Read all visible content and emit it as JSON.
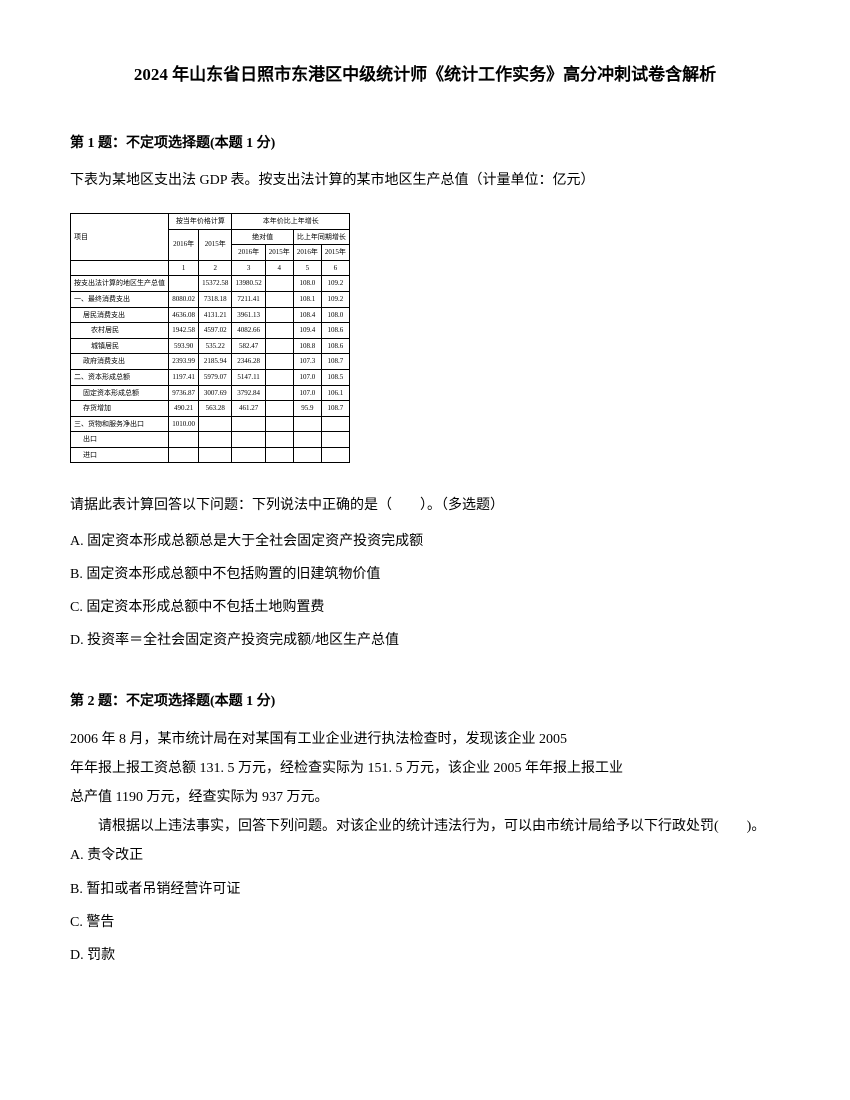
{
  "title": "2024 年山东省日照市东港区中级统计师《统计工作实务》高分冲刺试卷含解析",
  "q1": {
    "header": "第 1 题：不定项选择题(本题 1 分)",
    "intro": "下表为某地区支出法 GDP 表。按支出法计算的某市地区生产总值（计量单位：亿元）",
    "prompt": "请据此表计算回答以下问题：下列说法中正确的是（　　）。（多选题）",
    "options": {
      "A": "A. 固定资本形成总额总是大于全社会固定资产投资完成额",
      "B": "B. 固定资本形成总额中不包括购置的旧建筑物价值",
      "C": "C. 固定资本形成总额中不包括土地购置费",
      "D": "D. 投资率＝全社会固定资产投资完成额/地区生产总值"
    }
  },
  "table": {
    "header_top": {
      "col_group1": "按当年价格计算",
      "col_group2": "本年价比上年增长"
    },
    "header_years": {
      "y2016": "2016年",
      "y2015": "2015年",
      "sub1_label": "绝对值",
      "sub2_label": "比上年同期增长",
      "y2016_2": "2016年",
      "y2015_2": "2015年",
      "y2016_3": "2016年",
      "y2015_3": "2015年"
    },
    "header_nums": {
      "c1": "1",
      "c2": "2",
      "c3": "3",
      "c4": "4",
      "c5": "5",
      "c6": "6"
    },
    "row_label_item": "项目",
    "rows": [
      {
        "label": "按支出法计算的地区生产总值",
        "v1": "",
        "v2": "15372.58",
        "v3": "13980.52",
        "v4": "",
        "v5": "108.0",
        "v6": "109.2"
      },
      {
        "label": "一、最终消费支出",
        "v1": "8080.02",
        "v2": "7318.18",
        "v3": "7211.41",
        "v4": "",
        "v5": "108.1",
        "v6": "109.2"
      },
      {
        "label": "居民消费支出",
        "indent": 1,
        "v1": "4636.08",
        "v2": "4131.21",
        "v3": "3961.13",
        "v4": "",
        "v5": "108.4",
        "v6": "108.0"
      },
      {
        "label": "农村居民",
        "indent": 2,
        "v1": "1942.58",
        "v2": "4597.02",
        "v3": "4082.66",
        "v4": "",
        "v5": "109.4",
        "v6": "108.6"
      },
      {
        "label": "城镇居民",
        "indent": 2,
        "v1": "593.90",
        "v2": "535.22",
        "v3": "582.47",
        "v4": "",
        "v5": "108.8",
        "v6": "108.6"
      },
      {
        "label": "政府消费支出",
        "indent": 1,
        "v1": "2393.99",
        "v2": "2185.94",
        "v3": "2346.28",
        "v4": "",
        "v5": "107.3",
        "v6": "108.7"
      },
      {
        "label": "二、资本形成总额",
        "v1": "1197.41",
        "v2": "5979.07",
        "v3": "5147.11",
        "v4": "",
        "v5": "107.0",
        "v6": "108.5"
      },
      {
        "label": "固定资本形成总额",
        "indent": 1,
        "v1": "9736.87",
        "v2": "3007.69",
        "v3": "3792.84",
        "v4": "",
        "v5": "107.0",
        "v6": "106.1"
      },
      {
        "label": "存货增加",
        "indent": 1,
        "v1": "490.21",
        "v2": "563.28",
        "v3": "461.27",
        "v4": "",
        "v5": "95.9",
        "v6": "108.7"
      },
      {
        "label": "三、货物和服务净出口",
        "v1": "1010.00",
        "v2": "",
        "v3": "",
        "v4": "",
        "v5": "",
        "v6": ""
      },
      {
        "label": "出口",
        "indent": 1,
        "v1": "",
        "v2": "",
        "v3": "",
        "v4": "",
        "v5": "",
        "v6": ""
      },
      {
        "label": "进口",
        "indent": 1,
        "v1": "",
        "v2": "",
        "v3": "",
        "v4": "",
        "v5": "",
        "v6": ""
      }
    ]
  },
  "q2": {
    "header": "第 2 题：不定项选择题(本题 1 分)",
    "p1": "2006 年 8 月，某市统计局在对某国有工业企业进行执法检查时，发现该企业 2005",
    "p2": "年年报上报工资总额 131. 5 万元，经检查实际为 151. 5 万元，该企业 2005 年年报上报工业",
    "p3": "总产值 1190 万元，经查实际为 937 万元。",
    "p4": "请根据以上违法事实，回答下列问题。对该企业的统计违法行为，可以由市统计局给予以下行政处罚(　　)。",
    "options": {
      "A": "A. 责令改正",
      "B": "B. 暂扣或者吊销经营许可证",
      "C": "C. 警告",
      "D": "D. 罚款"
    }
  }
}
